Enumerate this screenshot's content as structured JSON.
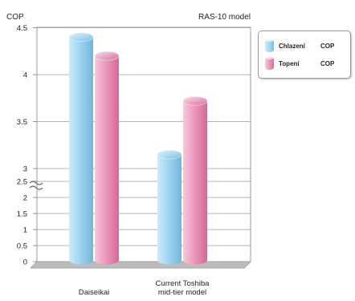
{
  "chart_data": {
    "type": "bar",
    "ylabel": "COP",
    "title": "RAS-10 model",
    "categories": [
      "Daiseikai",
      "Current Toshiba mid-tier model"
    ],
    "category_lines": [
      [
        "Daiseikai"
      ],
      [
        "Current Toshiba",
        "mid-tier model"
      ]
    ],
    "series": [
      {
        "name": "Chlazení",
        "unit": "COP",
        "color": "#8fcbea",
        "values": [
          4.4,
          3.15
        ]
      },
      {
        "name": "Topení",
        "unit": "COP",
        "color": "#e88cb4",
        "values": [
          4.2,
          3.72
        ]
      }
    ],
    "yticks": [
      "0",
      "0.5",
      "1",
      "1.5",
      "2",
      "2.5",
      "3",
      "3.5",
      "4",
      "4.5"
    ],
    "axis_break": true,
    "grid": true,
    "legend_position": "top-right"
  }
}
